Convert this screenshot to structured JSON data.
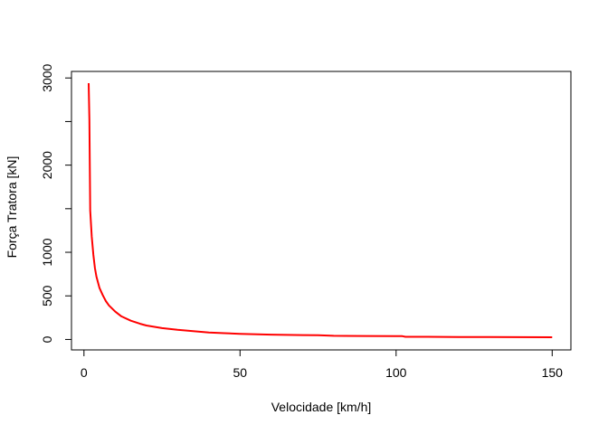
{
  "chart_data": {
    "type": "line",
    "title": "",
    "xlabel": "Velocidade [km/h]",
    "ylabel": "Força Tratora [kN]",
    "xlim": [
      -4,
      156
    ],
    "ylim": [
      -120,
      3075
    ],
    "xticks": [
      0,
      50,
      100,
      150
    ],
    "yticks": [
      0,
      500,
      1000,
      2000,
      3000
    ],
    "yticks_minor": [
      1500,
      2500
    ],
    "grid": false,
    "legend": "none",
    "line_color": "#ff0000",
    "x": [
      1.5,
      1.75,
      2,
      2.5,
      3,
      3.5,
      4,
      5,
      6,
      7,
      8,
      10,
      12,
      15,
      18,
      20,
      25,
      30,
      35,
      40,
      45,
      50,
      60,
      70,
      75,
      80,
      90,
      100,
      102,
      103,
      110,
      120,
      130,
      140,
      150
    ],
    "y": [
      2940,
      2520,
      1480,
      1180,
      970,
      820,
      720,
      590,
      510,
      440,
      390,
      320,
      265,
      215,
      180,
      160,
      130,
      110,
      95,
      80,
      72,
      65,
      55,
      50,
      48,
      42,
      40,
      38,
      38,
      30,
      30,
      28,
      27,
      26,
      25
    ]
  }
}
